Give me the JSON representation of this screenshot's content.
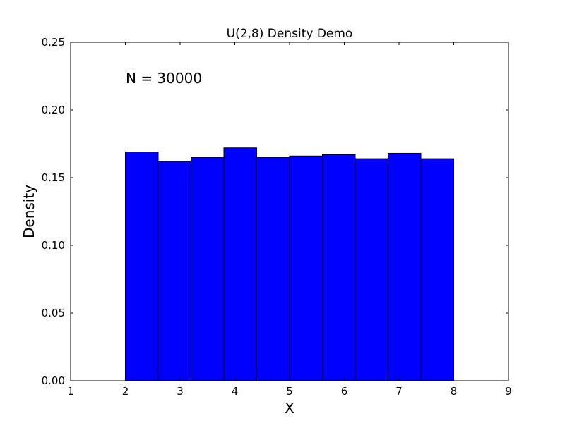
{
  "chart_data": {
    "type": "bar",
    "title": "U(2,8) Density Demo",
    "xlabel": "X",
    "ylabel": "Density",
    "annotation": "N = 30000",
    "xlim": [
      1,
      9
    ],
    "ylim": [
      0,
      0.25
    ],
    "xticks": [
      "1",
      "2",
      "3",
      "4",
      "5",
      "6",
      "7",
      "8",
      "9"
    ],
    "yticks": [
      "0.00",
      "0.05",
      "0.10",
      "0.15",
      "0.20",
      "0.25"
    ],
    "bins": [
      {
        "x0": 2.0,
        "x1": 2.6,
        "density": 0.169
      },
      {
        "x0": 2.6,
        "x1": 3.2,
        "density": 0.162
      },
      {
        "x0": 3.2,
        "x1": 3.8,
        "density": 0.165
      },
      {
        "x0": 3.8,
        "x1": 4.4,
        "density": 0.172
      },
      {
        "x0": 4.4,
        "x1": 5.0,
        "density": 0.165
      },
      {
        "x0": 5.0,
        "x1": 5.6,
        "density": 0.166
      },
      {
        "x0": 5.6,
        "x1": 6.2,
        "density": 0.167
      },
      {
        "x0": 6.2,
        "x1": 6.8,
        "density": 0.164
      },
      {
        "x0": 6.8,
        "x1": 7.4,
        "density": 0.168
      },
      {
        "x0": 7.4,
        "x1": 8.0,
        "density": 0.164
      }
    ],
    "bar_color": "#0000ff",
    "edge_color": "#000000",
    "grid": false,
    "legend": "none"
  }
}
